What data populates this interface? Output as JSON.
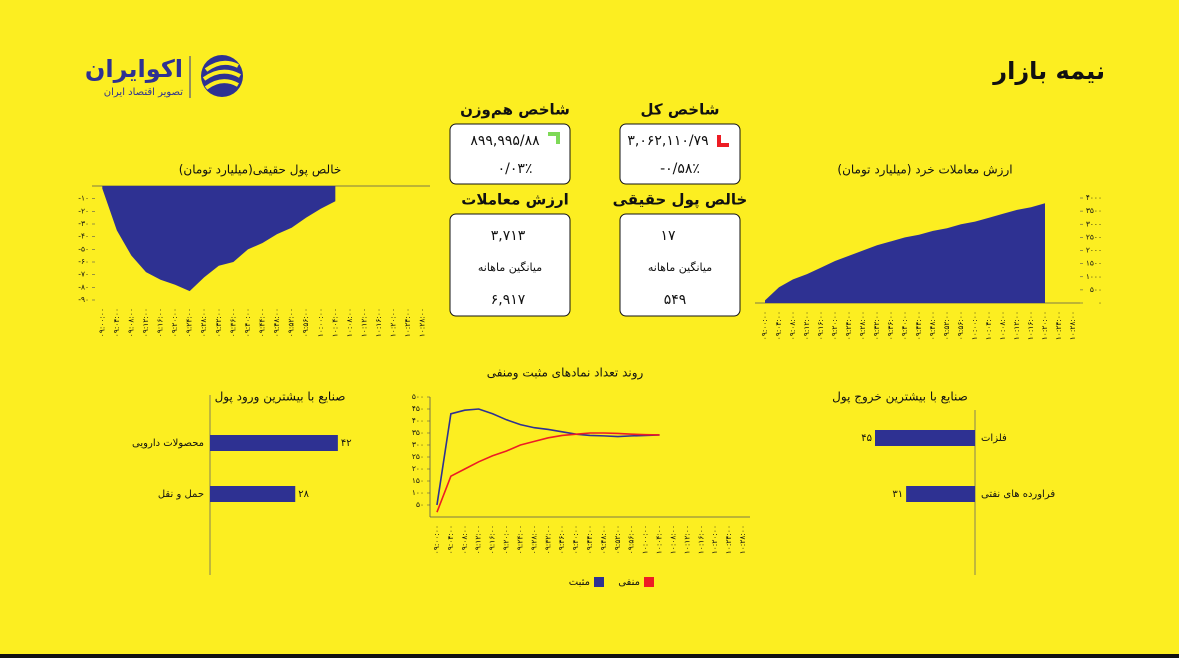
{
  "header": {
    "title": "نیمه بازار",
    "brand": "اکوایران",
    "tagline": "تصویر اقتصاد ایران"
  },
  "kpis": [
    {
      "title": "شاخص کل",
      "value": "۳,۰۶۲,۱۱۰/۷۹",
      "change": "-۰/۵۸٪",
      "direction": "down",
      "color": "#ed1c24"
    },
    {
      "title": "شاخص هم‌وزن",
      "value": "۸۹۹,۹۹۵/۸۸",
      "change": "۰/۰۳٪",
      "direction": "up",
      "color": "#7ed957"
    },
    {
      "title": "خالص پول حقیقی",
      "value": "۱۷",
      "sublabel": "میانگین ماهانه",
      "average": "۵۴۹",
      "color": "#7ed957"
    },
    {
      "title": "ارزش معاملات",
      "value": "۳,۷۱۳",
      "sublabel": "میانگین ماهانه",
      "average": "۶,۹۱۷",
      "color": "#000000"
    }
  ],
  "chart_data": [
    {
      "type": "area",
      "title": "خالص پول حقیقی(میلیارد تومان)",
      "color": "#2e3192",
      "categories": [
        "۰۹:۰۰:۰۰",
        "۰۹:۰۴:۰۰",
        "۰۹:۰۸:۰۰",
        "۰۹:۱۲:۰۰",
        "۰۹:۱۶:۰۰",
        "۰۹:۲۰:۰۰",
        "۰۹:۲۴:۰۰",
        "۰۹:۲۸:۰۰",
        "۰۹:۳۲:۰۰",
        "۰۹:۳۶:۰۰",
        "۰۹:۴۰:۰۰",
        "۰۹:۴۴:۰۰",
        "۰۹:۴۸:۰۰",
        "۰۹:۵۲:۰۰",
        "۰۹:۵۶:۰۰",
        "۱۰:۰۰:۰۰",
        "۱۰:۰۴:۰۰",
        "۱۰:۰۸:۰۰",
        "۱۰:۱۲:۰۰",
        "۱۰:۱۶:۰۰",
        "۱۰:۲۰:۰۰",
        "۱۰:۲۴:۰۰",
        "۱۰:۲۸:۰۰"
      ],
      "values": [
        -2,
        -35,
        -55,
        -68,
        -74,
        -78,
        -83,
        -72,
        -63,
        -60,
        -50,
        -45,
        -38,
        -33,
        -25,
        -18,
        -12,
        null,
        null,
        null,
        null,
        null,
        null
      ],
      "ylim": [
        -90,
        0
      ],
      "yticks": [
        {
          "value": -10,
          "label": "-۱۰"
        },
        {
          "value": -20,
          "label": "-۲۰"
        },
        {
          "value": -30,
          "label": "-۳۰"
        },
        {
          "value": -40,
          "label": "-۴۰"
        },
        {
          "value": -50,
          "label": "-۵۰"
        },
        {
          "value": -60,
          "label": "-۶۰"
        },
        {
          "value": -70,
          "label": "-۷۰"
        },
        {
          "value": -80,
          "label": "-۸۰"
        },
        {
          "value": -90,
          "label": "-۹۰"
        }
      ]
    },
    {
      "type": "area",
      "title": "ارزش معاملات خرد (میلیارد تومان)",
      "color": "#2e3192",
      "categories": [
        "۰۹:۰۰:۰۰",
        "۰۹:۰۴:۰۰",
        "۰۹:۰۸:۰۰",
        "۰۹:۱۲:۰۰",
        "۰۹:۱۶:۰۰",
        "۰۹:۲۰:۰۰",
        "۰۹:۲۴:۰۰",
        "۰۹:۲۸:۰۰",
        "۰۹:۳۲:۰۰",
        "۰۹:۳۶:۰۰",
        "۰۹:۴۰:۰۰",
        "۰۹:۴۴:۰۰",
        "۰۹:۴۸:۰۰",
        "۰۹:۵۲:۰۰",
        "۰۹:۵۶:۰۰",
        "۱۰:۰۰:۰۰",
        "۱۰:۰۴:۰۰",
        "۱۰:۰۸:۰۰",
        "۱۰:۱۲:۰۰",
        "۱۰:۱۶:۰۰",
        "۱۰:۲۰:۰۰",
        "۱۰:۲۴:۰۰",
        "۱۰:۲۸:۰۰"
      ],
      "values": [
        100,
        600,
        900,
        1100,
        1350,
        1600,
        1800,
        2000,
        2200,
        2350,
        2500,
        2600,
        2750,
        2850,
        3000,
        3100,
        3250,
        3400,
        3550,
        3650,
        3800,
        null,
        null
      ],
      "ylim": [
        0,
        4000
      ],
      "yticks": [
        {
          "value": 0,
          "label": "۰"
        },
        {
          "value": 500,
          "label": "۵۰۰"
        },
        {
          "value": 1000,
          "label": "۱۰۰۰"
        },
        {
          "value": 1500,
          "label": "۱۵۰۰"
        },
        {
          "value": 2000,
          "label": "۲۰۰۰"
        },
        {
          "value": 2500,
          "label": "۲۵۰۰"
        },
        {
          "value": 3000,
          "label": "۳۰۰۰"
        },
        {
          "value": 3500,
          "label": "۳۵۰۰"
        },
        {
          "value": 4000,
          "label": "۴۰۰۰"
        }
      ]
    },
    {
      "type": "line",
      "title": "روند تعداد نمادهای مثبت ومنفی",
      "categories": [
        "۰۹:۰۰:۰۰",
        "۰۹:۰۴:۰۰",
        "۰۹:۰۸:۰۰",
        "۰۹:۱۲:۰۰",
        "۰۹:۱۶:۰۰",
        "۰۹:۲۰:۰۰",
        "۰۹:۲۴:۰۰",
        "۰۹:۲۸:۰۰",
        "۰۹:۳۲:۰۰",
        "۰۹:۳۶:۰۰",
        "۰۹:۴۰:۰۰",
        "۰۹:۴۴:۰۰",
        "۰۹:۴۸:۰۰",
        "۰۹:۵۲:۰۰",
        "۰۹:۵۶:۰۰",
        "۱۰:۰۰:۰۰",
        "۱۰:۰۴:۰۰",
        "۱۰:۰۸:۰۰",
        "۱۰:۱۲:۰۰",
        "۱۰:۱۶:۰۰",
        "۱۰:۲۰:۰۰",
        "۱۰:۲۴:۰۰",
        "۱۰:۲۸:۰۰"
      ],
      "series": [
        {
          "name": "مثبت",
          "color": "#2e3192",
          "values": [
            50,
            430,
            445,
            450,
            430,
            405,
            385,
            372,
            365,
            355,
            345,
            340,
            338,
            335,
            338,
            340,
            342,
            null,
            null,
            null,
            null,
            null,
            null
          ]
        },
        {
          "name": "منفی",
          "color": "#ed1c24",
          "values": [
            20,
            170,
            200,
            230,
            255,
            275,
            300,
            315,
            330,
            340,
            345,
            350,
            350,
            348,
            345,
            343,
            342,
            null,
            null,
            null,
            null,
            null,
            null
          ]
        }
      ],
      "ylim": [
        0,
        500
      ],
      "yticks": [
        {
          "value": 50,
          "label": "۵۰"
        },
        {
          "value": 100,
          "label": "۱۰۰"
        },
        {
          "value": 150,
          "label": "۱۵۰"
        },
        {
          "value": 200,
          "label": "۲۰۰"
        },
        {
          "value": 250,
          "label": "۲۵۰"
        },
        {
          "value": 300,
          "label": "۳۰۰"
        },
        {
          "value": 350,
          "label": "۳۵۰"
        },
        {
          "value": 400,
          "label": "۴۰۰"
        },
        {
          "value": 450,
          "label": "۴۵۰"
        },
        {
          "value": 500,
          "label": "۵۰۰"
        }
      ]
    },
    {
      "type": "barh",
      "title": "صنایع با بیشترین ورود پول",
      "color": "#2e3192",
      "categories": [
        "محصولات دارویی",
        "حمل و نقل"
      ],
      "values": [
        42,
        28
      ],
      "value_labels": [
        "۴۲",
        "۲۸"
      ],
      "xlim": [
        0,
        45
      ]
    },
    {
      "type": "barh",
      "title": "صنایع با بیشترین خروج پول",
      "color": "#2e3192",
      "categories": [
        "فلزات",
        "فراورده های نفتی"
      ],
      "values": [
        45,
        31
      ],
      "value_labels": [
        "۴۵",
        "۳۱"
      ],
      "xlim": [
        0,
        45
      ]
    }
  ]
}
